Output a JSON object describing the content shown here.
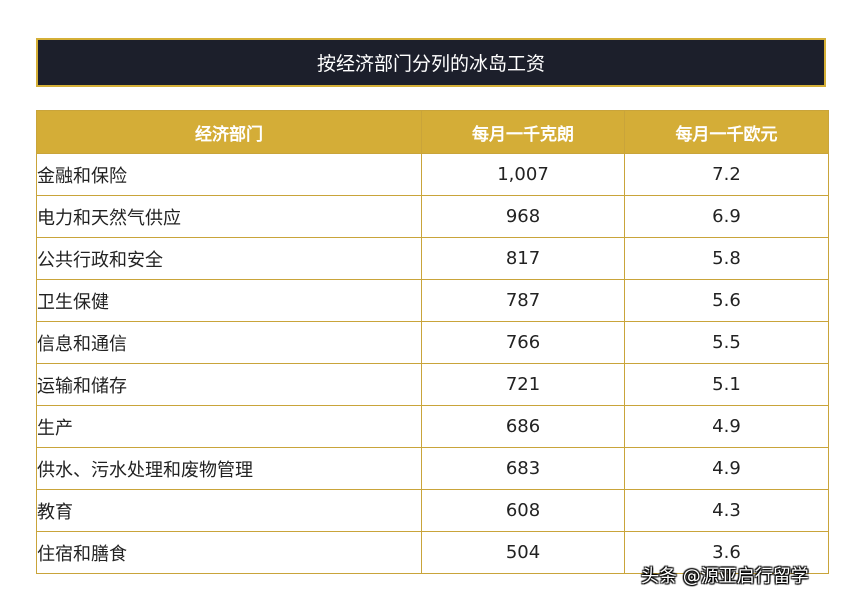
{
  "title": "按经济部门分列的冰岛工资",
  "table": {
    "headers": [
      "经济部门",
      "每月一千克朗",
      "每月一千欧元"
    ],
    "rows": [
      {
        "sector": "金融和保险",
        "isk": "1,007",
        "eur": "7.2"
      },
      {
        "sector": "电力和天然气供应",
        "isk": "968",
        "eur": "6.9"
      },
      {
        "sector": "公共行政和安全",
        "isk": "817",
        "eur": "5.8"
      },
      {
        "sector": "卫生保健",
        "isk": "787",
        "eur": "5.6"
      },
      {
        "sector": "信息和通信",
        "isk": "766",
        "eur": "5.5"
      },
      {
        "sector": "运输和储存",
        "isk": "721",
        "eur": "5.1"
      },
      {
        "sector": "生产",
        "isk": "686",
        "eur": "4.9"
      },
      {
        "sector": "供水、污水处理和废物管理",
        "isk": "683",
        "eur": "4.9"
      },
      {
        "sector": "教育",
        "isk": "608",
        "eur": "4.3"
      },
      {
        "sector": "住宿和膳食",
        "isk": "504",
        "eur": "3.6"
      }
    ]
  },
  "watermark": "头条 @源亚启行留学",
  "colors": {
    "title_background": "#1c1f2b",
    "accent_gold": "#d4ad37",
    "border_gold": "#c9a43a"
  }
}
